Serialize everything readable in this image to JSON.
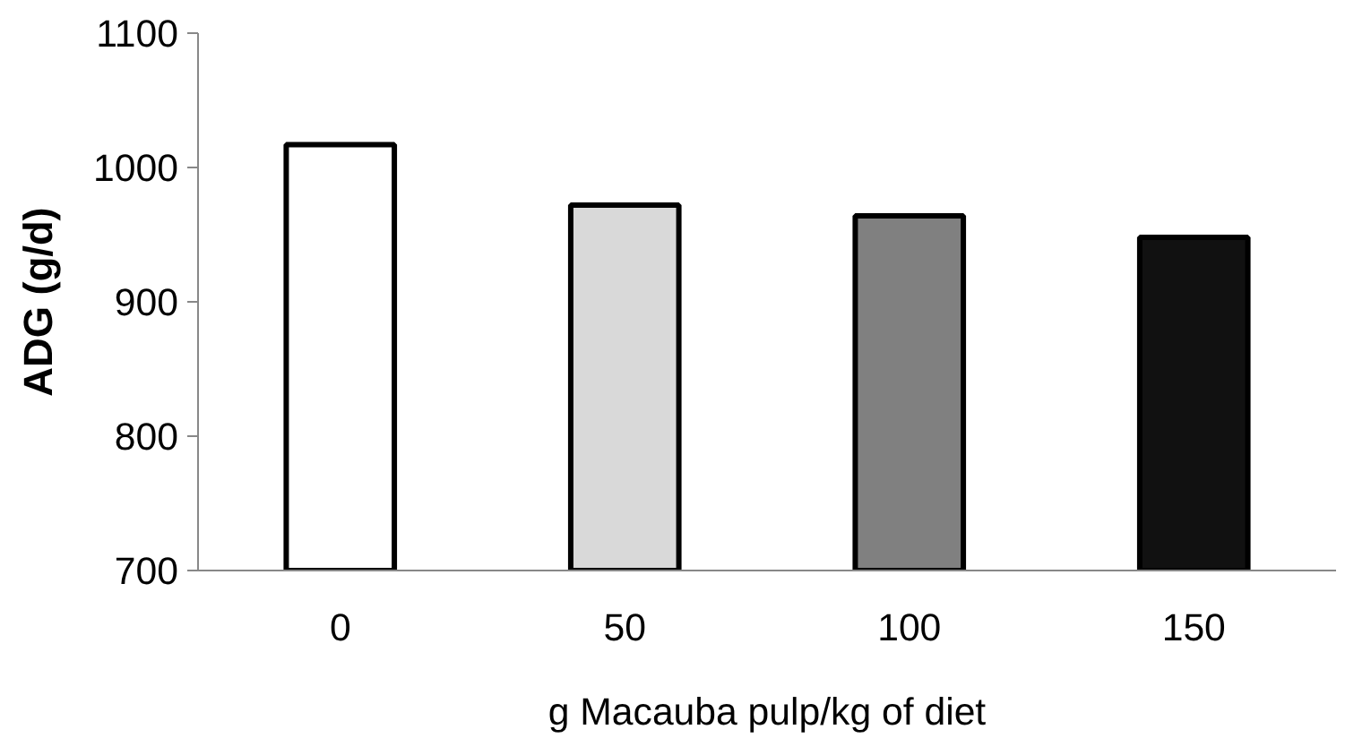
{
  "chart_data": {
    "type": "bar",
    "xlabel": "g Macauba pulp/kg of diet",
    "ylabel": "ADG (g/d)",
    "categories": [
      "0",
      "50",
      "100",
      "150"
    ],
    "values": [
      1017,
      972,
      964,
      948
    ],
    "colors": [
      "#ffffff",
      "#d9d9d9",
      "#808080",
      "#111111"
    ],
    "ylim": [
      700,
      1100
    ],
    "yticks": [
      700,
      800,
      900,
      1000,
      1100
    ],
    "grid": false
  }
}
